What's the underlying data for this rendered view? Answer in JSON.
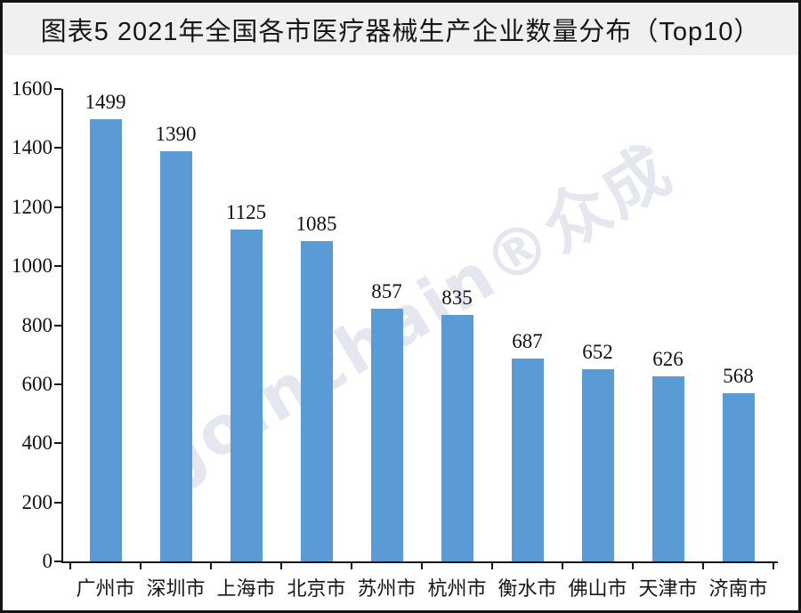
{
  "window": {
    "title": "图表5 2021年全国各市医疗器械生产企业数量分布（Top10）"
  },
  "watermark": {
    "text": "Joinchain®众成"
  },
  "chart_data": {
    "type": "bar",
    "title": "图表5 2021年全国各市医疗器械生产企业数量分布（Top10）",
    "categories": [
      "广州市",
      "深圳市",
      "上海市",
      "北京市",
      "苏州市",
      "杭州市",
      "衡水市",
      "佛山市",
      "天津市",
      "济南市"
    ],
    "values": [
      1499,
      1390,
      1125,
      1085,
      857,
      835,
      687,
      652,
      626,
      568
    ],
    "data_labels": [
      1499,
      1390,
      1125,
      1085,
      857,
      835,
      687,
      652,
      626,
      568
    ],
    "xlabel": "",
    "ylabel": "",
    "ylim": [
      0,
      1600
    ],
    "yticks": [
      0,
      200,
      400,
      600,
      800,
      1000,
      1200,
      1400,
      1600
    ],
    "grid": false,
    "legend": false,
    "bar_color": "#5b9bd5",
    "axis_color": "#161616",
    "title_band_color": "#f0f0f0",
    "frame_border_color": "#141414",
    "watermark_color_hint": "light gray-blue"
  }
}
